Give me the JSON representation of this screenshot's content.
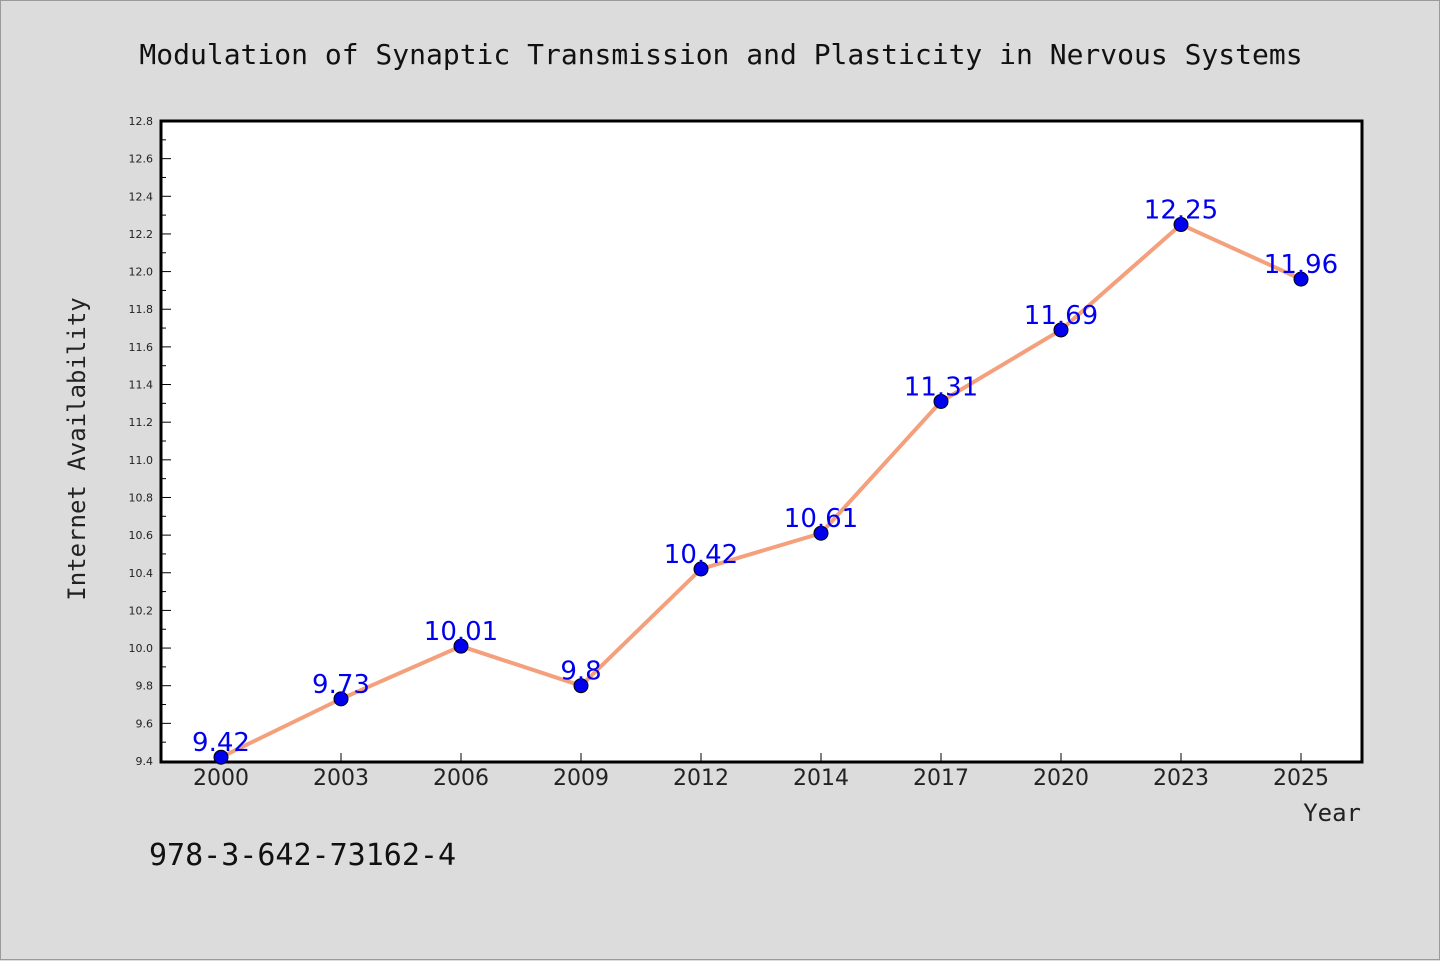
{
  "chart_data": {
    "type": "line",
    "title": "Modulation of Synaptic Transmission and Plasticity in Nervous Systems",
    "xlabel": "Year",
    "ylabel": "Internet Availability",
    "categories": [
      "2000",
      "2003",
      "2006",
      "2009",
      "2012",
      "2014",
      "2017",
      "2020",
      "2023",
      "2025"
    ],
    "series": [
      {
        "values": [
          9.42,
          9.73,
          10.01,
          9.8,
          10.42,
          10.61,
          11.31,
          11.69,
          12.25,
          11.96
        ],
        "data_labels": [
          "9.42",
          "9.73",
          "10.01",
          "9.8",
          "10.42",
          "10.61",
          "11.31",
          "11.69",
          "12.25",
          "11.96"
        ],
        "line_color": "#f4a07c",
        "marker_color": "#0000ee"
      }
    ],
    "ylim": [
      9.4,
      12.8
    ],
    "yticks": [
      "9.4",
      "9.6",
      "9.8",
      "10.0",
      "10.2",
      "10.4",
      "10.6",
      "10.8",
      "11.0",
      "11.2",
      "11.4",
      "11.6",
      "11.8",
      "12.0",
      "12.2",
      "12.4",
      "12.6",
      "12.8"
    ],
    "grid": false,
    "legend": "none",
    "label_color": "#0000ee"
  },
  "footnote": "978-3-642-73162-4",
  "colors": {
    "background": "#dcdcdc",
    "plot_area": "#ffffff"
  }
}
